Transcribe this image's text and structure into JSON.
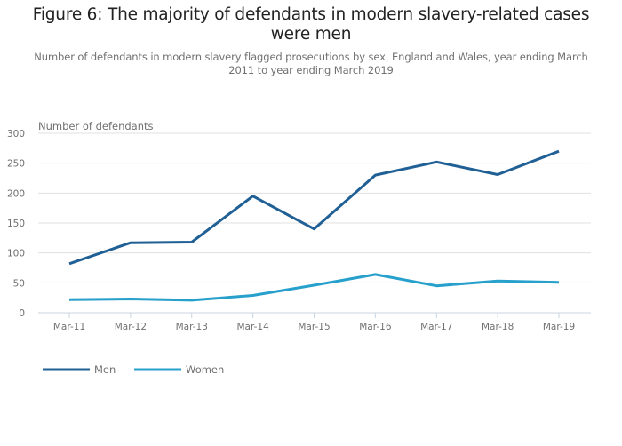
{
  "chart_data": {
    "type": "line",
    "title": "Figure 6: The majority of defendants in modern slavery-related cases were men",
    "subtitle": "Number of defendants in modern slavery flagged prosecutions by sex, England and Wales, year ending March 2011 to year ending March 2019",
    "xlabel": "",
    "ylabel": "Number of defendants",
    "ylim": [
      0,
      300
    ],
    "yticks": [
      0,
      50,
      100,
      150,
      200,
      250,
      300
    ],
    "grid": true,
    "legend_position": "bottom-left",
    "categories": [
      "Mar-11",
      "Mar-12",
      "Mar-13",
      "Mar-14",
      "Mar-15",
      "Mar-16",
      "Mar-17",
      "Mar-18",
      "Mar-19"
    ],
    "series": [
      {
        "name": "Men",
        "color": "#206095",
        "values": [
          82,
          117,
          118,
          195,
          140,
          230,
          252,
          231,
          270
        ]
      },
      {
        "name": "Women",
        "color": "#27a0cc",
        "values": [
          22,
          23,
          21,
          29,
          46,
          64,
          45,
          53,
          51
        ]
      }
    ]
  },
  "colors": {
    "grid": "#e0e0e0",
    "axis": "#c8d4e0",
    "text": "#707070",
    "title": "#222222"
  }
}
